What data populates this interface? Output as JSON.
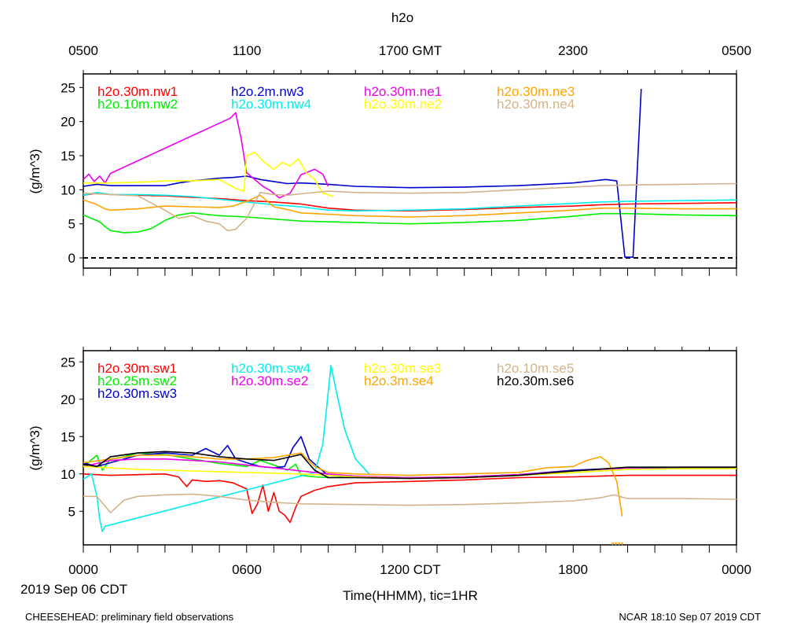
{
  "title": "h2o",
  "top_axis_ticks": [
    "0500",
    "1100",
    "1700 GMT",
    "2300",
    "0500"
  ],
  "bottom_axis_ticks": [
    "0000",
    "0600",
    "1200 CDT",
    "1800",
    "0000"
  ],
  "date_label": "2019 Sep 06 CDT",
  "xlabel": "Time(HHMM), tic=1HR",
  "footer_left": "CHEESEHEAD: preliminary field observations",
  "footer_right": "NCAR 18:10 Sep 07 2019 CDT",
  "chart_data": [
    {
      "type": "line",
      "ylabel": "(g/m^3)",
      "ylim": [
        -1.5,
        27
      ],
      "yticks": [
        "0",
        "5",
        "10",
        "15",
        "20",
        "25"
      ],
      "xlim_hours": [
        0,
        24
      ],
      "zero_line": true,
      "series": [
        {
          "name": "h2o.30m.nw1",
          "color": "#ff0000",
          "x": [
            0,
            0.5,
            1,
            2,
            3,
            4,
            5,
            6,
            7,
            8,
            9,
            10,
            12,
            14,
            16,
            18,
            19,
            20,
            22,
            24
          ],
          "y": [
            9.2,
            9.5,
            9.3,
            9.2,
            9.1,
            8.9,
            8.7,
            8.4,
            8.2,
            7.9,
            7.3,
            7.0,
            6.9,
            7.1,
            7.4,
            7.6,
            7.8,
            7.9,
            8.0,
            8.1
          ]
        },
        {
          "name": "h2o.10m.nw2",
          "color": "#00ee00",
          "x": [
            0,
            0.3,
            0.6,
            0.8,
            1,
            1.5,
            2,
            2.5,
            3,
            3.5,
            4,
            5,
            6,
            7,
            8,
            10,
            12,
            14,
            16,
            18,
            19,
            20,
            22,
            24
          ],
          "y": [
            6.3,
            5.8,
            5.3,
            4.6,
            4.0,
            3.7,
            3.8,
            4.3,
            5.5,
            6.3,
            6.6,
            6.2,
            6.0,
            5.7,
            5.4,
            5.2,
            5.0,
            5.2,
            5.5,
            6.1,
            6.5,
            6.5,
            6.3,
            6.2
          ]
        },
        {
          "name": "h2o.2m.nw3",
          "color": "#0000cc",
          "x": [
            0,
            0.5,
            1,
            2,
            3,
            3.5,
            4,
            5,
            5.5,
            6,
            6.5,
            7,
            7.5,
            8,
            9,
            10,
            12,
            14,
            16,
            18,
            19.2,
            19.6,
            19.9,
            20.2,
            20.5
          ],
          "y": [
            10.5,
            10.8,
            10.6,
            10.6,
            10.6,
            11.0,
            11.3,
            11.7,
            11.8,
            12.0,
            11.5,
            11.2,
            10.9,
            11.0,
            10.8,
            10.5,
            10.3,
            10.4,
            10.6,
            11.0,
            11.5,
            11.3,
            0.1,
            0.1,
            24.8
          ]
        },
        {
          "name": "h2o.30m.nw4",
          "color": "#00eeee",
          "x": [
            0,
            0.5,
            1,
            2,
            3,
            4,
            5,
            6,
            7,
            8,
            9,
            10,
            12,
            14,
            16,
            18,
            19,
            20,
            22,
            24
          ],
          "y": [
            9.2,
            9.6,
            9.3,
            9.3,
            9.2,
            9.0,
            8.6,
            8.2,
            7.8,
            7.5,
            7.0,
            6.9,
            7.0,
            7.2,
            7.6,
            8.0,
            8.2,
            8.3,
            8.4,
            8.5
          ]
        },
        {
          "name": "h2o.30m.ne1",
          "color": "#ee00ee",
          "x": [
            0,
            0.2,
            0.4,
            0.6,
            0.8,
            1.0,
            5.4,
            5.6,
            5.8,
            6.0,
            6.6,
            6.9,
            7.2,
            7.6,
            8.0,
            8.5,
            8.8,
            9.0
          ],
          "y": [
            11.5,
            12.3,
            11.2,
            12.0,
            11.0,
            12.4,
            20.5,
            21.3,
            17.5,
            12.5,
            10.5,
            9.8,
            8.8,
            9.5,
            12.2,
            13.0,
            12.3,
            10.5
          ]
        },
        {
          "name": "h2o.30m.ne2",
          "color": "#ffff00",
          "x": [
            0,
            1,
            2,
            3,
            4,
            5,
            5.6,
            5.9,
            6.0,
            6.3,
            6.6,
            7.0,
            7.3,
            7.6,
            7.9,
            8.2,
            8.5,
            8.8,
            9.2
          ],
          "y": [
            11.0,
            11.0,
            11.1,
            11.3,
            11.3,
            11.5,
            10.2,
            9.8,
            15.0,
            15.5,
            14.2,
            13.0,
            14.0,
            13.5,
            14.5,
            12.5,
            11.5,
            9.5,
            9.0
          ]
        },
        {
          "name": "h2o.30m.ne3",
          "color": "#ffa500",
          "x": [
            0,
            0.4,
            0.8,
            1,
            2,
            3,
            4,
            5,
            5.5,
            6,
            6.5,
            7,
            7.5,
            8,
            9,
            10,
            12,
            14,
            16,
            18,
            19,
            20,
            22,
            24
          ],
          "y": [
            8.5,
            8.0,
            7.2,
            7.0,
            7.2,
            7.6,
            7.5,
            7.4,
            7.6,
            8.3,
            9.2,
            7.5,
            7.1,
            6.6,
            6.4,
            6.2,
            6.0,
            6.2,
            6.6,
            7.0,
            7.3,
            7.3,
            7.2,
            7.2
          ]
        },
        {
          "name": "h2o.30m.ne4",
          "color": "#d2b48c",
          "x": [
            0,
            1,
            2,
            3,
            3.5,
            4,
            4.5,
            5,
            5.3,
            5.6,
            6,
            6.5,
            7,
            7.5,
            8,
            9,
            10,
            12,
            14,
            16,
            18,
            19,
            20,
            22,
            24
          ],
          "y": [
            9.5,
            9.3,
            9.1,
            7.0,
            5.8,
            6.2,
            5.4,
            5.0,
            4.0,
            4.2,
            5.8,
            9.6,
            9.3,
            9.2,
            9.4,
            9.8,
            9.6,
            9.5,
            9.6,
            10.0,
            10.4,
            10.6,
            10.7,
            10.8,
            10.9
          ]
        }
      ]
    },
    {
      "type": "line",
      "ylabel": "(g/m^3)",
      "ylim": [
        0.5,
        26.5
      ],
      "yticks": [
        "5",
        "10",
        "15",
        "20",
        "25"
      ],
      "xlim_hours": [
        0,
        24
      ],
      "series": [
        {
          "name": "h2o.30m.sw1",
          "color": "#ff0000",
          "x": [
            0,
            1,
            2,
            3,
            3.5,
            3.8,
            4,
            4.5,
            5,
            5.5,
            6,
            6.2,
            6.4,
            6.6,
            6.8,
            7.0,
            7.2,
            7.4,
            7.6,
            7.8,
            8.0,
            8.5,
            9,
            10,
            12,
            14,
            16,
            18,
            20,
            22,
            24
          ],
          "y": [
            10.0,
            9.8,
            9.9,
            10.0,
            9.6,
            8.3,
            9.2,
            9.0,
            9.1,
            8.8,
            8.0,
            4.7,
            6.0,
            8.5,
            5.0,
            7.5,
            5.0,
            4.5,
            3.5,
            5.5,
            7.0,
            7.8,
            8.3,
            8.8,
            9.0,
            9.2,
            9.5,
            9.6,
            9.8,
            9.8,
            9.8
          ]
        },
        {
          "name": "h2o.25m.sw2",
          "color": "#00ee00",
          "x": [
            0,
            0.5,
            0.7,
            1,
            1.5,
            2,
            3,
            4,
            5,
            6,
            6.5,
            7,
            7.5,
            7.8,
            8,
            8.5,
            9,
            10,
            12,
            14,
            16,
            18,
            20,
            22,
            24
          ],
          "y": [
            11.0,
            12.5,
            10.5,
            12.0,
            12.3,
            12.8,
            12.6,
            12.0,
            11.4,
            11.0,
            11.8,
            11.2,
            10.5,
            11.3,
            9.8,
            9.6,
            9.5,
            9.6,
            9.4,
            9.5,
            9.8,
            10.2,
            10.6,
            10.7,
            10.8
          ]
        },
        {
          "name": "h2o.30m.sw3",
          "color": "#0000cc",
          "x": [
            0,
            0.5,
            1,
            2,
            3,
            4,
            4.5,
            5,
            5.3,
            5.6,
            6,
            6.5,
            7,
            7.4,
            7.7,
            8.0,
            8.3,
            8.6,
            9,
            10,
            12,
            14,
            16,
            18,
            20,
            22,
            24
          ],
          "y": [
            11.5,
            11.0,
            11.5,
            12.5,
            12.8,
            12.5,
            13.4,
            12.5,
            13.8,
            12.0,
            11.5,
            11.0,
            10.8,
            11.0,
            13.5,
            15.0,
            12.0,
            11.0,
            9.8,
            9.6,
            9.5,
            9.6,
            9.9,
            10.5,
            10.8,
            10.8,
            10.8
          ]
        },
        {
          "name": "h2o.30m.sw4",
          "color": "#00eeee",
          "x": [
            0,
            0.3,
            0.5,
            0.6,
            0.7,
            0.8,
            8.5,
            8.8,
            9.1,
            9.3,
            9.6,
            10,
            10.5
          ],
          "y": [
            9.3,
            10.0,
            7.0,
            4.0,
            2.3,
            3.0,
            10.2,
            14.0,
            24.5,
            21.0,
            16.0,
            12.0,
            10.0
          ]
        },
        {
          "name": "h2o.30m.se2",
          "color": "#ee00ee",
          "x": [
            0,
            1,
            2,
            3,
            4,
            5,
            6,
            7,
            8,
            9,
            10,
            12,
            14,
            16,
            18,
            20,
            22,
            24
          ],
          "y": [
            11.0,
            11.8,
            12.0,
            12.0,
            11.8,
            11.6,
            11.2,
            10.8,
            10.4,
            10.0,
            9.7,
            9.5,
            9.6,
            9.9,
            10.4,
            10.8,
            10.9,
            10.9
          ]
        },
        {
          "name": "h2o.30m.se3",
          "color": "#ffff00",
          "x": [
            0,
            1,
            2,
            3,
            4,
            5,
            6,
            7,
            8,
            9,
            10,
            12,
            14,
            16,
            18,
            20,
            22,
            24
          ],
          "y": [
            11.0,
            10.8,
            10.6,
            10.5,
            10.4,
            10.3,
            10.2,
            10.1,
            10.0,
            9.8,
            9.6,
            9.4,
            9.5,
            9.8,
            10.2,
            10.6,
            10.7,
            10.7
          ]
        },
        {
          "name": "h2o.3m.se4",
          "color": "#ffa500",
          "x": [
            0,
            1,
            2,
            3,
            4,
            5,
            6,
            7,
            8,
            8.5,
            9,
            10,
            12,
            14,
            16,
            17,
            18,
            18.5,
            19,
            19.3,
            19.6,
            19.8
          ],
          "y": [
            11.5,
            12.0,
            12.5,
            12.5,
            12.3,
            12.0,
            12.0,
            12.2,
            12.8,
            11.0,
            10.2,
            10.0,
            9.8,
            10.0,
            10.2,
            10.8,
            11.0,
            11.8,
            12.3,
            11.5,
            9.0,
            4.3
          ]
        },
        {
          "name": "h2o.10m.se5",
          "color": "#d2b48c",
          "x": [
            0,
            0.5,
            1,
            1.5,
            2,
            3,
            4,
            5,
            6,
            7,
            8,
            10,
            12,
            14,
            16,
            18,
            19,
            19.5,
            20,
            22,
            24
          ],
          "y": [
            7.0,
            7.0,
            4.8,
            6.5,
            7.0,
            7.2,
            7.3,
            7.0,
            6.5,
            6.2,
            6.0,
            5.9,
            5.8,
            5.9,
            6.1,
            6.4,
            6.8,
            7.2,
            6.7,
            6.7,
            6.6
          ]
        },
        {
          "name": "h2o.30m.se6",
          "color": "#000000",
          "x": [
            0,
            0.5,
            1,
            2,
            3,
            4,
            5,
            6,
            7,
            7.5,
            8,
            8.5,
            9,
            10,
            12,
            14,
            16,
            18,
            20,
            22,
            24
          ],
          "y": [
            11.3,
            11.0,
            12.3,
            12.8,
            13.0,
            12.8,
            12.3,
            12.0,
            11.8,
            12.2,
            12.6,
            10.5,
            9.5,
            9.5,
            9.4,
            9.5,
            9.8,
            10.4,
            10.9,
            10.9,
            10.9
          ]
        }
      ]
    }
  ]
}
